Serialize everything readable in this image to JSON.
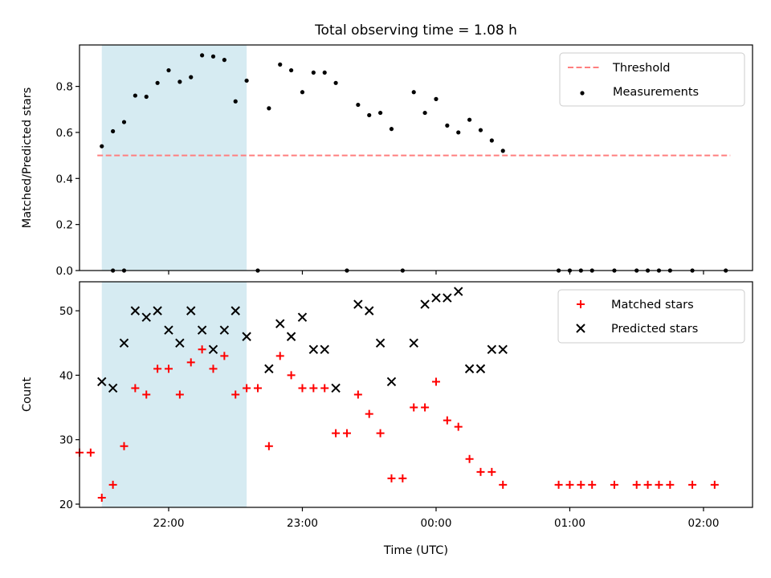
{
  "title": "Total observing time = 1.08 h",
  "colors": {
    "threshold": "#ff7f7f",
    "measurements": "#000000",
    "matched": "#ff0000",
    "predicted": "#000000",
    "shade": "#add8e6"
  },
  "chart_data": [
    {
      "type": "scatter",
      "title": "Total observing time = 1.08 h",
      "xlabel": "",
      "ylabel": "Matched/Predicted stars",
      "x_format": "HH:MM (UTC)",
      "xlim": [
        "21:20",
        "02:22"
      ],
      "ylim": [
        0,
        0.98
      ],
      "y_ticks": [
        "0.0",
        "0.2",
        "0.4",
        "0.6",
        "0.8"
      ],
      "shaded_interval": [
        "21:30",
        "22:35"
      ],
      "legend": {
        "placement": "top-right",
        "entries": [
          {
            "label": "Threshold",
            "kind": "dashed-line",
            "color": "#ff7f7f"
          },
          {
            "label": "Measurements",
            "kind": "dot",
            "color": "#000000"
          }
        ]
      },
      "threshold": {
        "name": "Threshold",
        "y": 0.5,
        "x_start": "21:28",
        "x_end": "02:12"
      },
      "series": [
        {
          "name": "Measurements",
          "points": [
            [
              "21:35",
              0.0
            ],
            [
              "21:40",
              0.0
            ],
            [
              "21:30",
              0.54
            ],
            [
              "21:35",
              0.605
            ],
            [
              "21:40",
              0.645
            ],
            [
              "21:45",
              0.76
            ],
            [
              "21:50",
              0.755
            ],
            [
              "21:55",
              0.815
            ],
            [
              "22:00",
              0.87
            ],
            [
              "22:05",
              0.82
            ],
            [
              "22:10",
              0.84
            ],
            [
              "22:15",
              0.935
            ],
            [
              "22:20",
              0.93
            ],
            [
              "22:25",
              0.915
            ],
            [
              "22:30",
              0.735
            ],
            [
              "22:35",
              0.825
            ],
            [
              "22:40",
              0.0
            ],
            [
              "22:45",
              0.705
            ],
            [
              "22:50",
              0.895
            ],
            [
              "22:55",
              0.87
            ],
            [
              "23:00",
              0.775
            ],
            [
              "23:05",
              0.86
            ],
            [
              "23:10",
              0.86
            ],
            [
              "23:15",
              0.815
            ],
            [
              "23:20",
              0.0
            ],
            [
              "23:25",
              0.72
            ],
            [
              "23:30",
              0.675
            ],
            [
              "23:35",
              0.685
            ],
            [
              "23:40",
              0.615
            ],
            [
              "23:45",
              0.0
            ],
            [
              "23:50",
              0.775
            ],
            [
              "23:55",
              0.685
            ],
            [
              "00:00",
              0.745
            ],
            [
              "00:05",
              0.63
            ],
            [
              "00:10",
              0.6
            ],
            [
              "00:15",
              0.655
            ],
            [
              "00:20",
              0.61
            ],
            [
              "00:25",
              0.565
            ],
            [
              "00:30",
              0.52
            ],
            [
              "00:55",
              0.0
            ],
            [
              "01:00",
              0.0
            ],
            [
              "01:05",
              0.0
            ],
            [
              "01:10",
              0.0
            ],
            [
              "01:20",
              0.0
            ],
            [
              "01:30",
              0.0
            ],
            [
              "01:35",
              0.0
            ],
            [
              "01:40",
              0.0
            ],
            [
              "01:45",
              0.0
            ],
            [
              "01:55",
              0.0
            ],
            [
              "02:10",
              0.0
            ]
          ]
        }
      ]
    },
    {
      "type": "scatter",
      "xlabel": "Time (UTC)",
      "ylabel": "Count",
      "x_format": "HH:MM (UTC)",
      "xlim": [
        "21:20",
        "02:22"
      ],
      "ylim": [
        19.5,
        54.5
      ],
      "x_ticks": [
        "22:00",
        "23:00",
        "00:00",
        "01:00",
        "02:00"
      ],
      "y_ticks": [
        "20",
        "30",
        "40",
        "50"
      ],
      "shaded_interval": [
        "21:30",
        "22:35"
      ],
      "legend": {
        "placement": "top-right",
        "entries": [
          {
            "label": "Matched stars",
            "kind": "plus",
            "color": "#ff0000"
          },
          {
            "label": "Predicted stars",
            "kind": "cross",
            "color": "#000000"
          }
        ]
      },
      "series": [
        {
          "name": "Matched stars",
          "points": [
            [
              "21:20",
              28
            ],
            [
              "21:25",
              28
            ],
            [
              "21:30",
              21
            ],
            [
              "21:35",
              23
            ],
            [
              "21:40",
              29
            ],
            [
              "21:45",
              38
            ],
            [
              "21:50",
              37
            ],
            [
              "21:55",
              41
            ],
            [
              "22:00",
              41
            ],
            [
              "22:05",
              37
            ],
            [
              "22:10",
              42
            ],
            [
              "22:15",
              44
            ],
            [
              "22:20",
              41
            ],
            [
              "22:25",
              43
            ],
            [
              "22:30",
              37
            ],
            [
              "22:35",
              38
            ],
            [
              "22:40",
              38
            ],
            [
              "22:45",
              29
            ],
            [
              "22:50",
              43
            ],
            [
              "22:55",
              40
            ],
            [
              "23:00",
              38
            ],
            [
              "23:05",
              38
            ],
            [
              "23:10",
              38
            ],
            [
              "23:15",
              31
            ],
            [
              "23:20",
              31
            ],
            [
              "23:25",
              37
            ],
            [
              "23:30",
              34
            ],
            [
              "23:35",
              31
            ],
            [
              "23:40",
              24
            ],
            [
              "23:45",
              24
            ],
            [
              "23:50",
              35
            ],
            [
              "23:55",
              35
            ],
            [
              "00:00",
              39
            ],
            [
              "00:05",
              33
            ],
            [
              "00:10",
              32
            ],
            [
              "00:15",
              27
            ],
            [
              "00:20",
              25
            ],
            [
              "00:25",
              25
            ],
            [
              "00:30",
              23
            ],
            [
              "00:55",
              23
            ],
            [
              "01:00",
              23
            ],
            [
              "01:05",
              23
            ],
            [
              "01:10",
              23
            ],
            [
              "01:20",
              23
            ],
            [
              "01:30",
              23
            ],
            [
              "01:35",
              23
            ],
            [
              "01:40",
              23
            ],
            [
              "01:45",
              23
            ],
            [
              "01:55",
              23
            ],
            [
              "02:05",
              23
            ]
          ]
        },
        {
          "name": "Predicted stars",
          "points": [
            [
              "21:30",
              39
            ],
            [
              "21:35",
              38
            ],
            [
              "21:40",
              45
            ],
            [
              "21:45",
              50
            ],
            [
              "21:50",
              49
            ],
            [
              "21:55",
              50
            ],
            [
              "22:00",
              47
            ],
            [
              "22:05",
              45
            ],
            [
              "22:10",
              50
            ],
            [
              "22:15",
              47
            ],
            [
              "22:20",
              44
            ],
            [
              "22:25",
              47
            ],
            [
              "22:30",
              50
            ],
            [
              "22:35",
              46
            ],
            [
              "22:45",
              41
            ],
            [
              "22:50",
              48
            ],
            [
              "22:55",
              46
            ],
            [
              "23:00",
              49
            ],
            [
              "23:05",
              44
            ],
            [
              "23:10",
              44
            ],
            [
              "23:15",
              38
            ],
            [
              "23:25",
              51
            ],
            [
              "23:30",
              50
            ],
            [
              "23:35",
              45
            ],
            [
              "23:40",
              39
            ],
            [
              "23:50",
              45
            ],
            [
              "23:55",
              51
            ],
            [
              "00:00",
              52
            ],
            [
              "00:05",
              52
            ],
            [
              "00:10",
              53
            ],
            [
              "00:15",
              41
            ],
            [
              "00:20",
              41
            ],
            [
              "00:25",
              44
            ],
            [
              "00:30",
              44
            ]
          ]
        }
      ]
    }
  ]
}
